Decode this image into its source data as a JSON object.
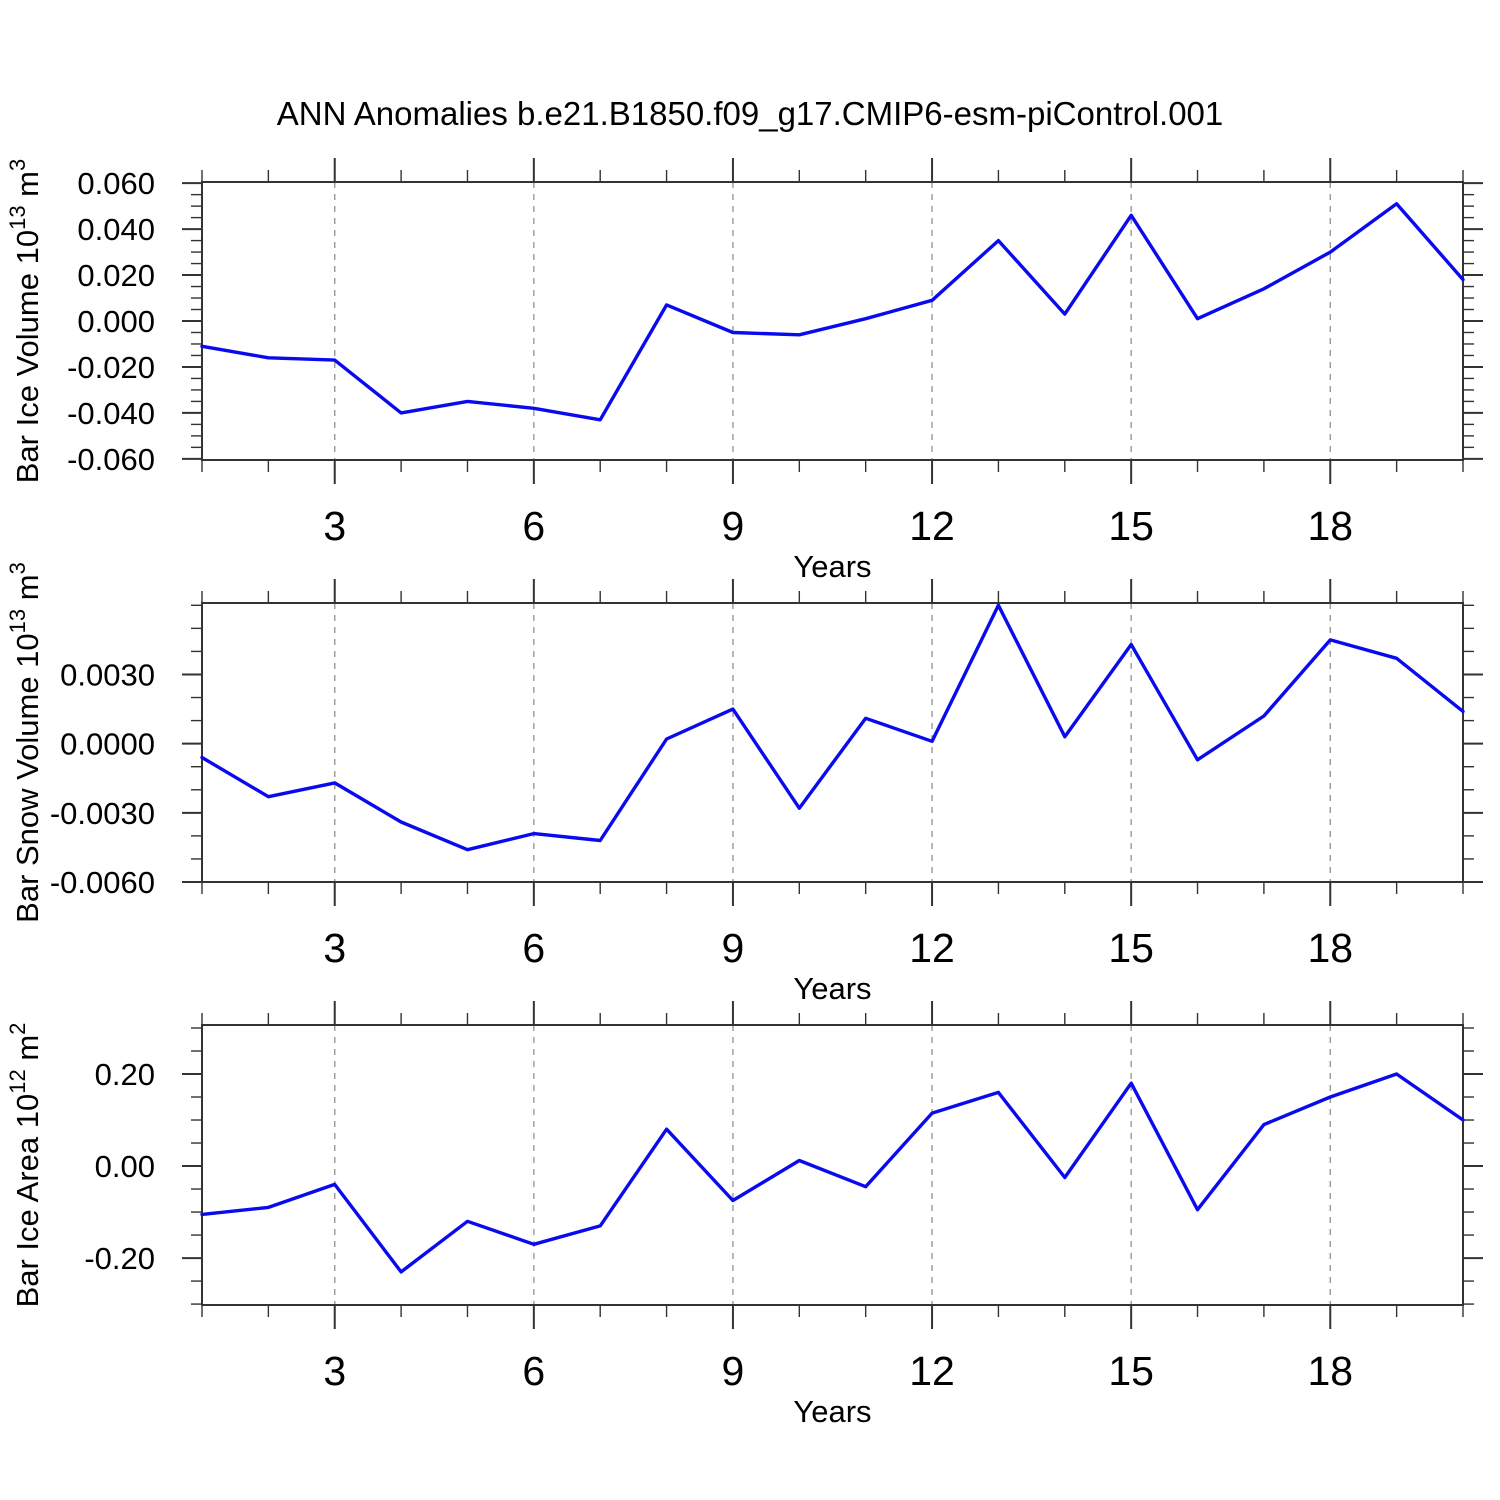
{
  "title": "ANN Anomalies b.e21.B1850.f09_g17.CMIP6-esm-piControl.001",
  "style": {
    "background": "#ffffff",
    "line_color": "#0a0aee",
    "axis_color": "#333333",
    "tick_color": "#333333",
    "grid_color": "#999999",
    "text_color": "#000000"
  },
  "chart_data": [
    {
      "type": "line",
      "panel": "ice-volume",
      "ylabel_text": "Bar Ice Volume 10^13 m^3",
      "ylabel_parts": [
        {
          "t": "Bar Ice Volume 10"
        },
        {
          "t": "13",
          "sup": true
        },
        {
          "t": " m"
        },
        {
          "t": "3",
          "sup": true
        }
      ],
      "xlabel": "Years",
      "x": [
        1,
        2,
        3,
        4,
        5,
        6,
        7,
        8,
        9,
        10,
        11,
        12,
        13,
        14,
        15,
        16,
        17,
        18,
        19,
        20
      ],
      "values": [
        -0.011,
        -0.016,
        -0.017,
        -0.04,
        -0.035,
        -0.038,
        -0.043,
        0.007,
        -0.005,
        -0.006,
        0.001,
        0.009,
        0.035,
        0.003,
        0.046,
        0.001,
        0.014,
        0.03,
        0.051,
        0.018
      ],
      "xlim": [
        1,
        20
      ],
      "ylim": [
        -0.0605,
        0.0605
      ],
      "yticks": [
        {
          "v": 0.06,
          "label": "0.060"
        },
        {
          "v": 0.04,
          "label": "0.040"
        },
        {
          "v": 0.02,
          "label": "0.020"
        },
        {
          "v": 0.0,
          "label": "0.000"
        },
        {
          "v": -0.02,
          "label": "-0.020"
        },
        {
          "v": -0.04,
          "label": "-0.040"
        },
        {
          "v": -0.06,
          "label": "-0.060"
        }
      ],
      "y_minor_step": 0.005,
      "xticks": [
        {
          "v": 3,
          "label": "3"
        },
        {
          "v": 6,
          "label": "6"
        },
        {
          "v": 9,
          "label": "9"
        },
        {
          "v": 12,
          "label": "12"
        },
        {
          "v": 15,
          "label": "15"
        },
        {
          "v": 18,
          "label": "18"
        }
      ],
      "x_minor_step": 1,
      "grid": "vertical-dashed"
    },
    {
      "type": "line",
      "panel": "snow-volume",
      "ylabel_text": "Bar Snow Volume 10^13 m^3",
      "ylabel_parts": [
        {
          "t": "Bar Snow Volume 10"
        },
        {
          "t": "13",
          "sup": true
        },
        {
          "t": " m"
        },
        {
          "t": "3",
          "sup": true
        }
      ],
      "xlabel": "Years",
      "x": [
        1,
        2,
        3,
        4,
        5,
        6,
        7,
        8,
        9,
        10,
        11,
        12,
        13,
        14,
        15,
        16,
        17,
        18,
        19,
        20
      ],
      "values": [
        -0.0006,
        -0.0023,
        -0.0017,
        -0.0034,
        -0.0046,
        -0.0039,
        -0.0042,
        0.0002,
        0.0015,
        -0.0028,
        0.0011,
        0.0001,
        0.006,
        0.0003,
        0.0043,
        -0.0007,
        0.0012,
        0.0045,
        0.0037,
        0.0014
      ],
      "xlim": [
        1,
        20
      ],
      "ylim": [
        -0.006,
        0.0061
      ],
      "yticks": [
        {
          "v": 0.003,
          "label": "0.0030"
        },
        {
          "v": 0.0,
          "label": "0.0000"
        },
        {
          "v": -0.003,
          "label": "-0.0030"
        },
        {
          "v": -0.006,
          "label": "-0.0060"
        }
      ],
      "y_minor_step": 0.001,
      "xticks": [
        {
          "v": 3,
          "label": "3"
        },
        {
          "v": 6,
          "label": "6"
        },
        {
          "v": 9,
          "label": "9"
        },
        {
          "v": 12,
          "label": "12"
        },
        {
          "v": 15,
          "label": "15"
        },
        {
          "v": 18,
          "label": "18"
        }
      ],
      "x_minor_step": 1,
      "grid": "vertical-dashed"
    },
    {
      "type": "line",
      "panel": "ice-area",
      "ylabel_text": "Bar Ice Area 10^12 m^2",
      "ylabel_parts": [
        {
          "t": "Bar Ice Area 10"
        },
        {
          "t": "12",
          "sup": true
        },
        {
          "t": " m"
        },
        {
          "t": "2",
          "sup": true
        }
      ],
      "xlabel": "Years",
      "x": [
        1,
        2,
        3,
        4,
        5,
        6,
        7,
        8,
        9,
        10,
        11,
        12,
        13,
        14,
        15,
        16,
        17,
        18,
        19,
        20
      ],
      "values": [
        -0.105,
        -0.09,
        -0.04,
        -0.23,
        -0.12,
        -0.17,
        -0.13,
        0.08,
        -0.075,
        0.012,
        -0.045,
        0.115,
        0.16,
        -0.025,
        0.18,
        -0.095,
        0.09,
        0.15,
        0.2,
        0.1
      ],
      "xlim": [
        1,
        20
      ],
      "ylim": [
        -0.302,
        0.3065
      ],
      "yticks": [
        {
          "v": 0.2,
          "label": "0.20"
        },
        {
          "v": 0.0,
          "label": "0.00"
        },
        {
          "v": -0.2,
          "label": "-0.20"
        }
      ],
      "y_minor_step": 0.05,
      "xticks": [
        {
          "v": 3,
          "label": "3"
        },
        {
          "v": 6,
          "label": "6"
        },
        {
          "v": 9,
          "label": "9"
        },
        {
          "v": 12,
          "label": "12"
        },
        {
          "v": 15,
          "label": "15"
        },
        {
          "v": 18,
          "label": "18"
        }
      ],
      "x_minor_step": 1,
      "grid": "vertical-dashed"
    }
  ]
}
